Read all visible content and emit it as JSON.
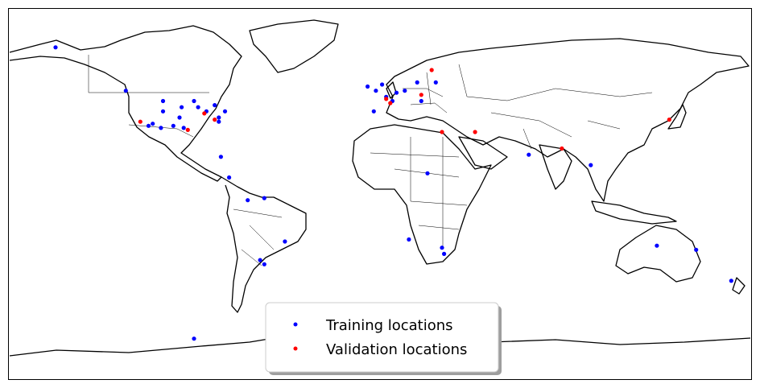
{
  "colors": {
    "training": "#0000ff",
    "validation": "#ff0000",
    "coastline": "#000000",
    "background": "#ffffff"
  },
  "legend": {
    "training_label": "Training locations",
    "validation_label": "Validation locations",
    "placement": "lower-center"
  },
  "chart_data": {
    "type": "scatter",
    "projection": "PlateCarree",
    "xlim": [
      -180,
      180
    ],
    "ylim": [
      -90,
      90
    ],
    "series": [
      {
        "name": "Training locations",
        "color": "#0000ff",
        "points": [
          [
            -157,
            71
          ],
          [
            -123,
            50
          ],
          [
            -105,
            45
          ],
          [
            -105,
            40
          ],
          [
            -96,
            42
          ],
          [
            -90,
            45
          ],
          [
            -88,
            42
          ],
          [
            -97,
            37
          ],
          [
            -80,
            43
          ],
          [
            -84,
            40
          ],
          [
            -75,
            40
          ],
          [
            -78,
            37
          ],
          [
            -112,
            33
          ],
          [
            -106,
            32
          ],
          [
            -110,
            34
          ],
          [
            -100,
            33
          ],
          [
            -95,
            32
          ],
          [
            -78,
            35
          ],
          [
            -64,
            -3
          ],
          [
            -56,
            -2
          ],
          [
            -46,
            -23
          ],
          [
            -58,
            -32
          ],
          [
            -56,
            -34
          ],
          [
            -90,
            -70
          ],
          [
            -2,
            50
          ],
          [
            -6,
            52
          ],
          [
            1,
            53
          ],
          [
            3,
            47
          ],
          [
            6,
            45
          ],
          [
            8,
            49
          ],
          [
            12,
            50
          ],
          [
            18,
            54
          ],
          [
            20,
            45
          ],
          [
            23,
            10
          ],
          [
            27,
            54
          ],
          [
            14,
            -22
          ],
          [
            30,
            -26
          ],
          [
            31,
            -29
          ],
          [
            72,
            19
          ],
          [
            102,
            14
          ],
          [
            134,
            -25
          ],
          [
            153,
            -27
          ],
          [
            170,
            -42
          ],
          [
            -3,
            40
          ],
          [
            -73,
            8
          ],
          [
            -77,
            18
          ]
        ]
      },
      {
        "name": "Validation locations",
        "color": "#ff0000",
        "points": [
          [
            -116,
            35
          ],
          [
            -85,
            39
          ],
          [
            -80,
            36
          ],
          [
            -93,
            31
          ],
          [
            3,
            46
          ],
          [
            5,
            44
          ],
          [
            25,
            60
          ],
          [
            20,
            48
          ],
          [
            30,
            30
          ],
          [
            46,
            30
          ],
          [
            88,
            22
          ],
          [
            140,
            36
          ]
        ]
      }
    ]
  }
}
